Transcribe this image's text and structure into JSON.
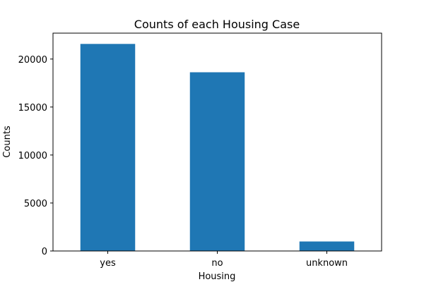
{
  "chart_data": {
    "type": "bar",
    "title": "Counts of each Housing Case",
    "xlabel": "Housing",
    "ylabel": "Counts",
    "categories": [
      "yes",
      "no",
      "unknown"
    ],
    "values": [
      21576,
      18622,
      990
    ],
    "ylim": [
      0,
      22700
    ],
    "yticks": [
      0,
      5000,
      10000,
      15000,
      20000
    ],
    "grid": false,
    "bar_color": "#1f77b4"
  }
}
